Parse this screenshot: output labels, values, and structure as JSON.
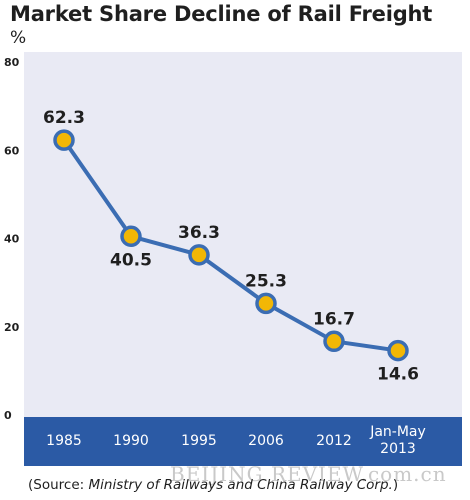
{
  "chart_data": {
    "type": "line",
    "title": "Market Share Decline of Rail Freight",
    "ylabel": "%",
    "categories": [
      "1985",
      "1990",
      "1995",
      "2006",
      "2012",
      "Jan-May 2013"
    ],
    "series": [
      {
        "values": [
          62.3,
          40.5,
          36.3,
          25.3,
          16.7,
          14.6
        ]
      }
    ],
    "ylim": [
      0,
      80
    ],
    "yticks": [
      0,
      20,
      40,
      60,
      80
    ],
    "grid": false,
    "legend": "none",
    "colors": {
      "line": "#3b6db3",
      "marker_fill": "#f2b705",
      "marker_stroke": "#3b6db3",
      "axis_band": "#2b5aa5",
      "plot_bg": "#e9eaf4"
    }
  },
  "source": {
    "prefix": "(Source: ",
    "name": "Ministry of Railways and China Railway Corp.",
    "suffix": ")"
  },
  "watermark": "BEIJING REVIEW.com.cn"
}
